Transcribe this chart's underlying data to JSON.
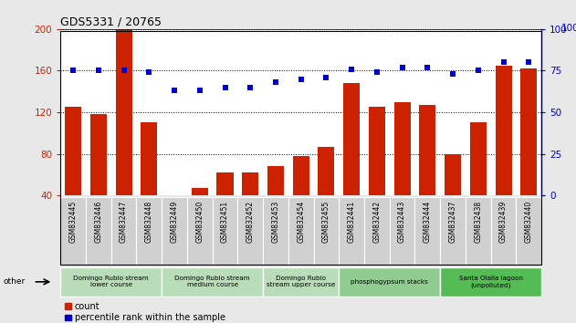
{
  "title": "GDS5331 / 20765",
  "samples": [
    "GSM832445",
    "GSM832446",
    "GSM832447",
    "GSM832448",
    "GSM832449",
    "GSM832450",
    "GSM832451",
    "GSM832452",
    "GSM832453",
    "GSM832454",
    "GSM832455",
    "GSM832441",
    "GSM832442",
    "GSM832443",
    "GSM832444",
    "GSM832437",
    "GSM832438",
    "GSM832439",
    "GSM832440"
  ],
  "counts": [
    125,
    118,
    200,
    110,
    40,
    47,
    62,
    62,
    68,
    78,
    87,
    148,
    125,
    130,
    127,
    80,
    110,
    165,
    162
  ],
  "percentiles": [
    75,
    75,
    75,
    74,
    63,
    63,
    65,
    65,
    68,
    70,
    71,
    76,
    74,
    77,
    77,
    73,
    75,
    80,
    80
  ],
  "groups": [
    {
      "label": "Domingo Rubio stream\nlower course",
      "start": 0,
      "end": 4,
      "color": "#b8ddb8"
    },
    {
      "label": "Domingo Rubio stream\nmedium course",
      "start": 4,
      "end": 8,
      "color": "#b8ddb8"
    },
    {
      "label": "Domingo Rubio\nstream upper course",
      "start": 8,
      "end": 11,
      "color": "#b8ddb8"
    },
    {
      "label": "phosphogypsum stacks",
      "start": 11,
      "end": 15,
      "color": "#90cc90"
    },
    {
      "label": "Santa Olalla lagoon\n(unpolluted)",
      "start": 15,
      "end": 19,
      "color": "#55bb55"
    }
  ],
  "bar_color": "#cc2200",
  "dot_color": "#0000cc",
  "ylim_left": [
    40,
    200
  ],
  "ylim_right": [
    0,
    100
  ],
  "yticks_left": [
    40,
    80,
    120,
    160,
    200
  ],
  "yticks_right": [
    0,
    25,
    50,
    75,
    100
  ],
  "background_color": "#e8e8e8",
  "plot_bg": "#ffffff",
  "grid_color": "#000000",
  "xtick_bg": "#d0d0d0"
}
